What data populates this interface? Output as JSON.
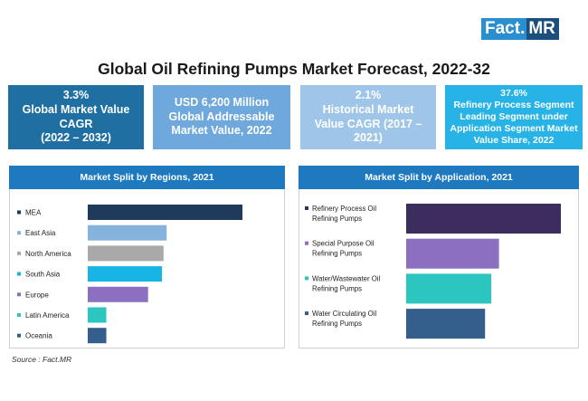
{
  "logo": {
    "fact": "Fact.",
    "mr": "MR"
  },
  "title": "Global Oil Refining Pumps Market Forecast, 2022-32",
  "cards": [
    {
      "lines": [
        "3.3%",
        "Global Market Value",
        "CAGR",
        "(2022 – 2032)"
      ],
      "color": "#1f6fa3"
    },
    {
      "lines": [
        "USD 6,200 Million",
        "Global Addressable",
        "Market Value, 2022"
      ],
      "color": "#6fa8dc"
    },
    {
      "lines": [
        "2.1%",
        "Historical Market",
        "Value CAGR (2017 –",
        "2021)"
      ],
      "color": "#9fc5e8"
    },
    {
      "lines": [
        "37.6%",
        "Refinery Process Segment",
        "Leading Segment under",
        "Application Segment Market",
        "Value Share, 2022"
      ],
      "color": "#27b3e6"
    }
  ],
  "chart_data": [
    {
      "type": "bar",
      "title": "Market Split by Regions, 2021",
      "orientation": "horizontal",
      "categories": [
        "MEA",
        "East Asia",
        "North America",
        "South Asia",
        "Europe",
        "Latin America",
        "Oceania"
      ],
      "values": [
        100,
        51,
        49,
        48,
        39,
        12,
        12
      ],
      "colors": [
        "#1f3a5a",
        "#86b3dd",
        "#a9a9a9",
        "#18b4e6",
        "#8c6fc0",
        "#2cc6c0",
        "#345f8c"
      ],
      "legend": "left"
    },
    {
      "type": "bar",
      "title": "Market Split by Application, 2021",
      "orientation": "horizontal",
      "categories": [
        [
          "Refinery Process Oil",
          "Refining Pumps"
        ],
        [
          "Special Purpose Oil",
          "Refining Pumps"
        ],
        [
          "Water/Wastewater Oil",
          "Refining Pumps"
        ],
        [
          "Water Circulating Oil",
          "Refining Pumps"
        ]
      ],
      "values": [
        100,
        60,
        55,
        51
      ],
      "colors": [
        "#3d2d5e",
        "#8c6fc0",
        "#2cc6c0",
        "#345f8c"
      ],
      "legend": "left"
    }
  ],
  "source": "Source : Fact.MR"
}
